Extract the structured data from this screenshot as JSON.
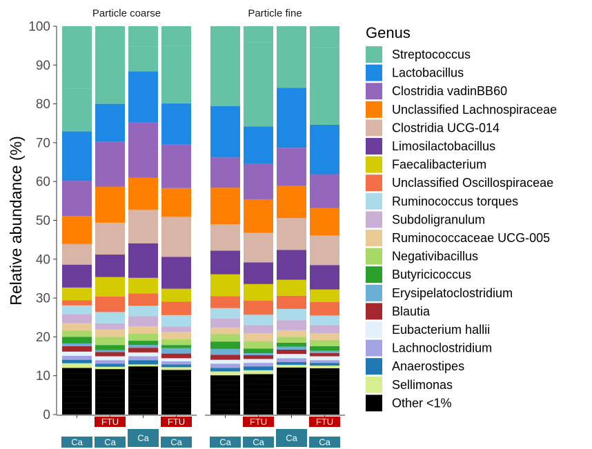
{
  "chart_data": {
    "type": "stacked-bar",
    "ylabel": "Relative abundance (%)",
    "ylim": [
      0,
      100
    ],
    "yticks": [
      0,
      10,
      20,
      30,
      40,
      50,
      60,
      70,
      80,
      90,
      100
    ],
    "legend": {
      "title": "Genus",
      "position": "right"
    },
    "facets": [
      "Particle coarse",
      "Particle fine"
    ],
    "series": [
      {
        "name": "Other <1%",
        "color": "#000000"
      },
      {
        "name": "Sellimonas",
        "color": "#D7EE8E"
      },
      {
        "name": "Anaerostipes",
        "color": "#1F78B4"
      },
      {
        "name": "Lachnoclostridium",
        "color": "#A3A3E3"
      },
      {
        "name": "Eubacterium hallii",
        "color": "#E3F2FA"
      },
      {
        "name": "Blautia",
        "color": "#A3292E"
      },
      {
        "name": "Erysipelatoclostridium",
        "color": "#6BAED6"
      },
      {
        "name": "Butyricicoccus",
        "color": "#2CA02C"
      },
      {
        "name": "Negativibacillus",
        "color": "#A8D968"
      },
      {
        "name": "Ruminococcaceae UCG-005",
        "color": "#E9C994"
      },
      {
        "name": "Subdoligranulum",
        "color": "#CBB0D6"
      },
      {
        "name": "Ruminococcus torques",
        "color": "#ABDAEB"
      },
      {
        "name": "Unclassified Oscillospiraceae",
        "color": "#F26F45"
      },
      {
        "name": "Faecalibacterium",
        "color": "#D4CC00"
      },
      {
        "name": "Limosilactobacillus",
        "color": "#6A3D9A"
      },
      {
        "name": "Clostridia UCG-014",
        "color": "#D9B5A7"
      },
      {
        "name": "Unclassified Lachnospiraceae",
        "color": "#FF7F00"
      },
      {
        "name": "Clostridia vadinBB60",
        "color": "#9467BD"
      },
      {
        "name": "Lactobacillus",
        "color": "#1E88E5"
      },
      {
        "name": "Streptococcus",
        "color": "#66C2A5"
      }
    ],
    "unlabeled_segment": {
      "color": "#7F7F7F"
    },
    "bars": [
      {
        "facet": "Particle coarse",
        "tags": [
          "Ca"
        ],
        "segments": [
          12.0,
          1.2,
          0.9,
          1.0,
          1.1,
          1.4,
          0.7,
          1.7,
          1.6,
          1.9,
          2.4,
          2.2,
          1.3,
          3.3,
          5.9,
          5.3,
          7.2,
          9.1,
          12.7,
          11.1
        ]
      },
      {
        "facet": "Particle coarse",
        "tags": [
          "FTU",
          "Ca"
        ],
        "segments": [
          11.7,
          0.6,
          0.8,
          0.9,
          1.0,
          1.1,
          0.5,
          1.3,
          2.1,
          1.9,
          1.6,
          2.9,
          4.0,
          5.0,
          5.8,
          8.2,
          9.3,
          11.5,
          9.8,
          14.5
        ]
      },
      {
        "facet": "Particle coarse",
        "tags": [
          "Ca"
        ],
        "segments": [
          12.4,
          0.5,
          1.1,
          1.0,
          1.0,
          1.2,
          0.7,
          1.1,
          1.9,
          1.8,
          2.6,
          2.7,
          3.2,
          4.0,
          8.9,
          8.6,
          8.3,
          14.2,
          13.2,
          6.3
        ]
      },
      {
        "facet": "Particle coarse",
        "tags": [
          "FTU",
          "Ca"
        ],
        "segments": [
          11.5,
          0.7,
          0.7,
          0.8,
          0.8,
          1.2,
          1.4,
          0.8,
          1.5,
          1.9,
          1.4,
          2.9,
          3.5,
          3.3,
          8.2,
          10.3,
          7.4,
          11.2,
          10.6,
          14.9
        ]
      },
      {
        "facet": "Particle fine",
        "tags": [
          "Ca"
        ],
        "segments": [
          10.1,
          1.0,
          0.9,
          1.1,
          1.0,
          1.3,
          1.5,
          1.9,
          1.9,
          1.7,
          2.3,
          2.7,
          3.1,
          5.6,
          6.1,
          6.8,
          9.4,
          7.8,
          13.2,
          16.7
        ]
      },
      {
        "facet": "Particle fine",
        "tags": [
          "FTU",
          "Ca"
        ],
        "segments": [
          10.4,
          1.0,
          1.0,
          0.9,
          1.0,
          1.0,
          0.5,
          1.2,
          1.9,
          2.0,
          2.1,
          2.7,
          3.6,
          4.3,
          5.6,
          7.6,
          8.6,
          9.1,
          9.7,
          21.6
        ]
      },
      {
        "facet": "Particle fine",
        "tags": [
          "Ca"
        ],
        "segments": [
          12.1,
          0.7,
          0.7,
          1.0,
          1.1,
          1.1,
          0.8,
          1.0,
          1.5,
          1.7,
          2.6,
          2.9,
          3.4,
          4.1,
          7.7,
          8.2,
          8.3,
          9.8,
          15.4,
          9.5
        ]
      },
      {
        "facet": "Particle fine",
        "tags": [
          "FTU",
          "Ca"
        ],
        "segments": [
          11.9,
          0.7,
          0.7,
          0.7,
          1.0,
          0.8,
          0.6,
          1.2,
          1.6,
          1.7,
          2.1,
          2.5,
          3.5,
          3.2,
          6.3,
          7.6,
          7.1,
          8.7,
          12.7,
          20.0
        ]
      }
    ]
  }
}
